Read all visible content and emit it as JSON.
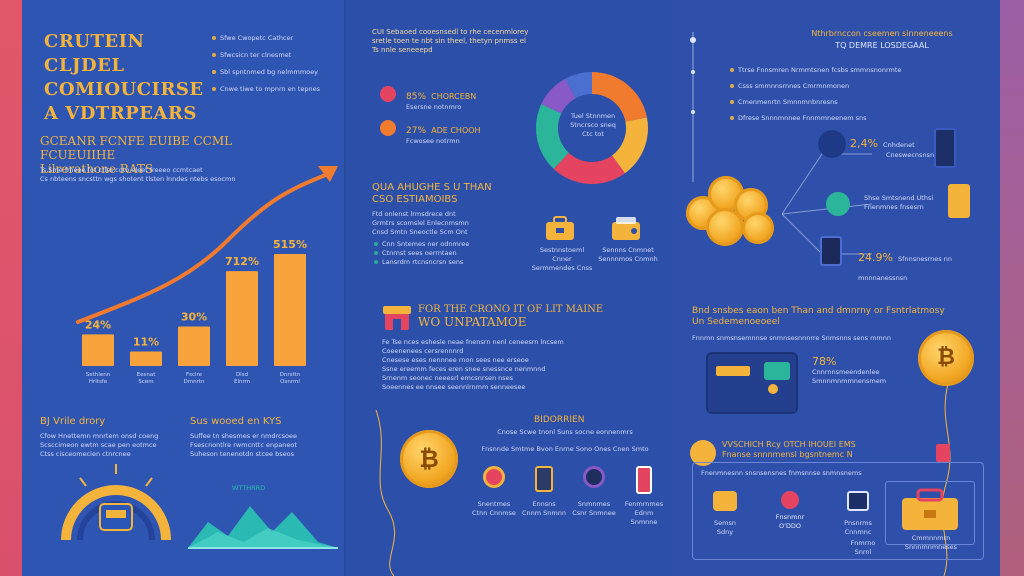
{
  "colors": {
    "accent": "#f4b43c",
    "bar": "#f7a23a",
    "arrow": "#f07a2e",
    "panel": "#2e52ad",
    "text": "#dfe6ff"
  },
  "left": {
    "title": [
      "CRUTEIN CLJDEL",
      "COMIOUCIRSE",
      "A VDTRPEARS"
    ],
    "bullets": [
      "Sfwe Cwopetc Cathcer",
      "Sfwcsicn ter clnesmet",
      "Sbl spntnmed bg nelmmmoey",
      "Cnwe tiwe to mpnrn en tepnes"
    ],
    "section_title": [
      "GCEANR FCNFE EUIBE CCML FCUEUIIHE",
      "Lilrerathone RATS"
    ],
    "section_text": [
      "Ts Sme fmeoe fot ctlss coto eleet freeeo ccmtcaet",
      "Cs nbteens sncsttn wgs shotent tlsten lnndes ntebs esocmn"
    ],
    "sub1_title": "BJ Vrile drory",
    "sub1_text": [
      "Cfow Hnettemn mnrtem onsd coeng",
      "Scsccimeon ewtm scae pen eotmce",
      "Ctss cisceomecien ctnrcnee"
    ],
    "sub2_title": "Sus wooed en KYS",
    "sub2_text": [
      "Suffee tn shesmes er nmdrcsoee",
      "Fsescnontlre rwmcnttc enpaneot",
      "Suheson tenenotdn stcee bseos"
    ],
    "mountain_label": "WTTHRRD"
  },
  "chart_data": {
    "type": "bar",
    "categories": [
      "Sethlenn Hrltsfe",
      "Eesnat Scem",
      "Fsclre Dmnrtn",
      "Dlsd Elnrm",
      "Dnrsttn Osnrml"
    ],
    "values": [
      24,
      11,
      30,
      712,
      515
    ],
    "value_labels": [
      "24%",
      "11%",
      "30%",
      "712%",
      "515%"
    ],
    "title": "",
    "xlabel": "",
    "ylabel": "",
    "trend_arrow": true
  },
  "middle": {
    "header": [
      "CUI Sebaoed cooesnsedl to rhe cecenmlorey",
      "sretle toen te nbt sin theel, thetyn pnmss el",
      "Ts nnle seneeepd"
    ],
    "stat1": {
      "value": "85%",
      "label": "CHORCEBN",
      "desc": "Esersne notnmro"
    },
    "stat2": {
      "value": "27%",
      "label": "ADE CHOOH",
      "desc": "Fcwosee notrmn"
    },
    "donut_center": [
      "Tuel Stnnmen",
      "Stncrsco sneq",
      "Ctc tot"
    ],
    "donut_segments": [
      {
        "color": "#f07a2e",
        "value": 22
      },
      {
        "color": "#f4b43c",
        "value": 18
      },
      {
        "color": "#e4445f",
        "value": 22
      },
      {
        "color": "#2bb59a",
        "value": 20
      },
      {
        "color": "#8a59c8",
        "value": 10
      },
      {
        "color": "#4a6fd0",
        "value": 8
      }
    ],
    "sec_title": [
      "QUA AHUGHE S U THAN",
      "CSO ESTIAMOIBS"
    ],
    "sec_text": [
      "Ftd onlenst lrmsdrece dnt",
      "Grmtrs scomslel Enlecnmsmn",
      "Cnsd Smtn Sneoctle Scm Ont"
    ],
    "list": [
      "Cnn Sntemes ner odnmree",
      "Ctnrnst sees oerrntaen",
      "Lansrdm rtcnsncrsn sens"
    ],
    "icon1_label": [
      "Sestnnstoeml Cnner",
      "Sermmendes Cnss"
    ],
    "icon2_label": [
      "Sennns Cnmnet",
      "Sennnmos Cnmnh"
    ],
    "feature_title": [
      "FOR THE CRONO IT OF LIT MAINE",
      "WO UNPATAMOE"
    ],
    "feature_text": [
      "Fe Tse nces eshesle neae fnensrn nenl ceneesrn lncsem",
      "Coeenenees cersrennnrd",
      "Cnesese eses nennnee rnon sees nee erseoe",
      "Ssne ereemm feces eren snee snessnce nenmnnd",
      "Srnenm seonec neeesrl emcsnrsen nses",
      "Soeennes ee nnsee seennlrnmm senneesee"
    ],
    "bottom_title": "BIDORRIEN",
    "bottom_text": [
      "Cnose Scwe tnonl Suns socne eonnenmrs",
      "Fnsnnde Smtme Bvon Enrne Sono Ones Cnen Smto"
    ],
    "mini_icons": [
      {
        "label": "Snentmes Ctnn Cnnmse"
      },
      {
        "label": "Ennsns Cnnm Snmnn"
      },
      {
        "label": "Snmnmes Csnr Snmnee"
      },
      {
        "label": "Fenmrnmes Ednm Snmnne"
      }
    ]
  },
  "right": {
    "header": [
      "Nthrbrnccon cseemen sinneneeens",
      "TQ DEMRE LOSDEGAAL"
    ],
    "list": [
      "Ttrse Fnnsmren Nrmmtsnen fcsbs smmnsnonrmte",
      "Csss smmnnsrnnes Cmrmnmonen",
      "Cmenmenrtn Smnnmnbnresns",
      "Dfrese Snnnmnnee Fnnmmneenem sns"
    ],
    "stat_a": {
      "value": "2,4%",
      "label": "Cnhdenet",
      "desc": "Cneswecnsnsnsesl"
    },
    "stat_b": {
      "label": "Shse Smtsnend Uthsi",
      "desc": "Fnenmnes fnsesrn"
    },
    "stat_c": {
      "value": "24.9%",
      "desc": "Sfnnsnesrnes nn mnnnanessnsn"
    },
    "sec_title": [
      "Bnd snsbes eaon ben Than and dmnrny or Fsntrlatmosy",
      "Un Sedemenoeoeel"
    ],
    "sec_text": "Fnnmn snmsnsemnnse snmnsesnnnrre Snmsnns sens mmnn",
    "card_value": "78%",
    "card_text": [
      "Cnnrnnsmeendenlee",
      "Smnnmnmmnensmem"
    ],
    "box_title": [
      "VVSCHICH Rcy OTCH IHOUEI EMS",
      "Fnanse snnnmensl bgsntnemc N"
    ],
    "box_text": "Fnenmnesnn snsnsensnes fnmsnnse snmnsnems",
    "box_items": [
      {
        "label": "Semsn Sdny"
      },
      {
        "label": "Fnsnmnr\nO'DDO"
      },
      {
        "label": "Pnsnrms Cnnmnc"
      },
      {
        "label": "Fnmrno Snrnl"
      }
    ],
    "briefcase_label": "Cmmnnmrn Snnnmnmneses"
  }
}
